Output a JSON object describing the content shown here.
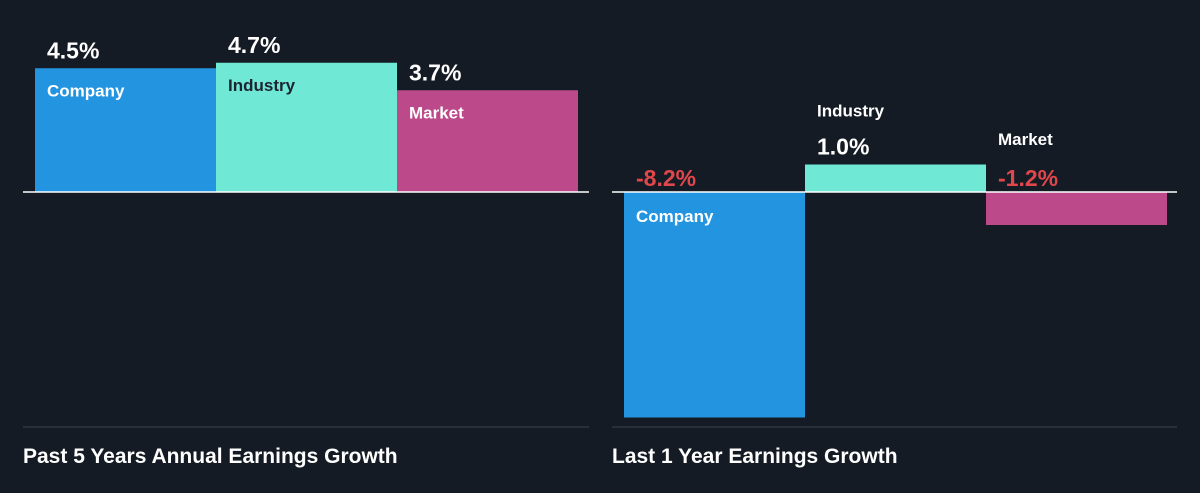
{
  "colors": {
    "background": "#151b24",
    "company": "#2394e0",
    "industry": "#6fe8d6",
    "market": "#bc4a8a",
    "positive_value": "#ffffff",
    "negative_value": "#e0474c",
    "axis": "#ffffff",
    "baseline": "#3a4250"
  },
  "chart_data": [
    {
      "type": "bar",
      "title": "Past 5 Years Annual Earnings Growth",
      "unit": "%",
      "categories": [
        "Company",
        "Industry",
        "Market"
      ],
      "values": [
        4.5,
        4.7,
        3.7
      ],
      "value_labels": [
        "4.5%",
        "4.7%",
        "3.7%"
      ]
    },
    {
      "type": "bar",
      "title": "Last 1 Year Earnings Growth",
      "unit": "%",
      "categories": [
        "Company",
        "Industry",
        "Market"
      ],
      "values": [
        -8.2,
        1.0,
        -1.2
      ],
      "value_labels": [
        "-8.2%",
        "1.0%",
        "-1.2%"
      ]
    }
  ]
}
